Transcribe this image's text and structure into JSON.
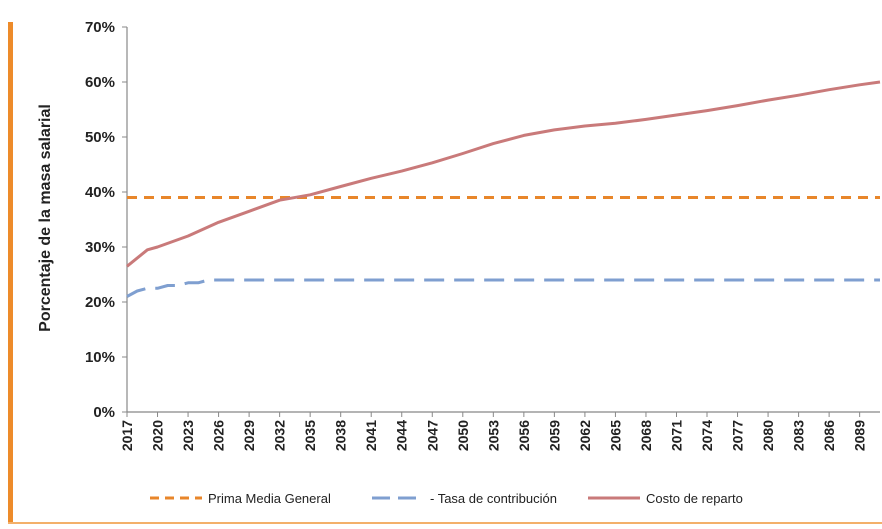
{
  "chart_data": {
    "type": "line",
    "title": "",
    "xlabel": "",
    "ylabel": "Porcentaje de la masa salarial",
    "ylim": [
      0,
      70
    ],
    "yticks": [
      "0%",
      "10%",
      "20%",
      "30%",
      "40%",
      "50%",
      "60%",
      "70%"
    ],
    "x_tick_labels": [
      "2017",
      "2020",
      "2023",
      "2026",
      "2029",
      "2032",
      "2035",
      "2038",
      "2041",
      "2044",
      "2047",
      "2050",
      "2053",
      "2056",
      "2059",
      "2062",
      "2065",
      "2068",
      "2071",
      "2074",
      "2077",
      "2080",
      "2083",
      "2086",
      "2089"
    ],
    "xlim": [
      2017,
      2091
    ],
    "legend_position": "bottom",
    "series": [
      {
        "name": "Prima Media General",
        "color": "#e8862a",
        "style": "short-dash",
        "x": [
          2017,
          2091
        ],
        "values": [
          39,
          39
        ]
      },
      {
        "name": "- Tasa de contribución",
        "color": "#7f9fd0",
        "style": "long-dash",
        "x": [
          2017,
          2018,
          2019,
          2020,
          2021,
          2022,
          2023,
          2024,
          2025,
          2026,
          2091
        ],
        "values": [
          21,
          22,
          22.5,
          22.5,
          23,
          23,
          23.5,
          23.5,
          24,
          24,
          24
        ]
      },
      {
        "name": "Costo de reparto",
        "color": "#c97a7a",
        "style": "solid",
        "x": [
          2017,
          2019,
          2020,
          2023,
          2026,
          2029,
          2032,
          2035,
          2038,
          2041,
          2044,
          2047,
          2050,
          2053,
          2056,
          2059,
          2062,
          2065,
          2068,
          2071,
          2074,
          2077,
          2080,
          2083,
          2086,
          2089,
          2091
        ],
        "values": [
          26.5,
          29.5,
          30,
          32,
          34.5,
          36.5,
          38.5,
          39.5,
          41,
          42.5,
          43.8,
          45.3,
          47,
          48.8,
          50.3,
          51.3,
          52,
          52.5,
          53.2,
          54,
          54.8,
          55.7,
          56.7,
          57.6,
          58.6,
          59.5,
          60
        ]
      }
    ]
  }
}
